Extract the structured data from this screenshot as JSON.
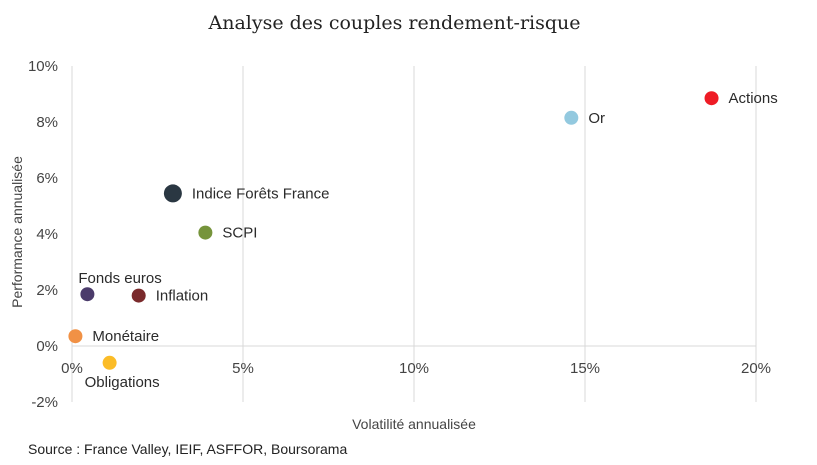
{
  "chart_data": {
    "type": "scatter",
    "title": "Analyse des couples rendement-risque",
    "xlabel": "Volatilité annualisée",
    "ylabel": "Performance annualisée",
    "xlim": [
      0,
      20
    ],
    "ylim": [
      -2,
      10
    ],
    "x_ticks": [
      {
        "value": 0,
        "label": "0%"
      },
      {
        "value": 5,
        "label": "5%"
      },
      {
        "value": 10,
        "label": "10%"
      },
      {
        "value": 15,
        "label": "15%"
      },
      {
        "value": 20,
        "label": "20%"
      }
    ],
    "y_ticks": [
      {
        "value": -2,
        "label": "-2%"
      },
      {
        "value": 0,
        "label": "0%"
      },
      {
        "value": 2,
        "label": "2%"
      },
      {
        "value": 4,
        "label": "4%"
      },
      {
        "value": 6,
        "label": "6%"
      },
      {
        "value": 8,
        "label": "8%"
      },
      {
        "value": 10,
        "label": "10%"
      }
    ],
    "grid": {
      "x": true,
      "y": false
    },
    "points": [
      {
        "label": "Actions",
        "x": 18.7,
        "y": 8.85,
        "color": "#ee1c25",
        "label_pos": "right"
      },
      {
        "label": "Or",
        "x": 14.6,
        "y": 8.15,
        "color": "#93c9df",
        "label_pos": "right"
      },
      {
        "label": "Indice Forêts France",
        "x": 2.95,
        "y": 5.45,
        "color": "#2a3742",
        "label_pos": "right",
        "emphasis": true
      },
      {
        "label": "SCPI",
        "x": 3.9,
        "y": 4.05,
        "color": "#76943b",
        "label_pos": "right"
      },
      {
        "label": "Fonds euros",
        "x": 0.45,
        "y": 1.85,
        "color": "#4b3b6b",
        "label_pos": "above"
      },
      {
        "label": "Inflation",
        "x": 1.95,
        "y": 1.8,
        "color": "#7a2a2c",
        "label_pos": "right"
      },
      {
        "label": "Monétaire",
        "x": 0.1,
        "y": 0.35,
        "color": "#f19145",
        "label_pos": "right"
      },
      {
        "label": "Obligations",
        "x": 1.1,
        "y": -0.6,
        "color": "#fbbc27",
        "label_pos": "below"
      }
    ]
  },
  "source": "Source : France Valley, IEIF, ASFFOR, Boursorama"
}
